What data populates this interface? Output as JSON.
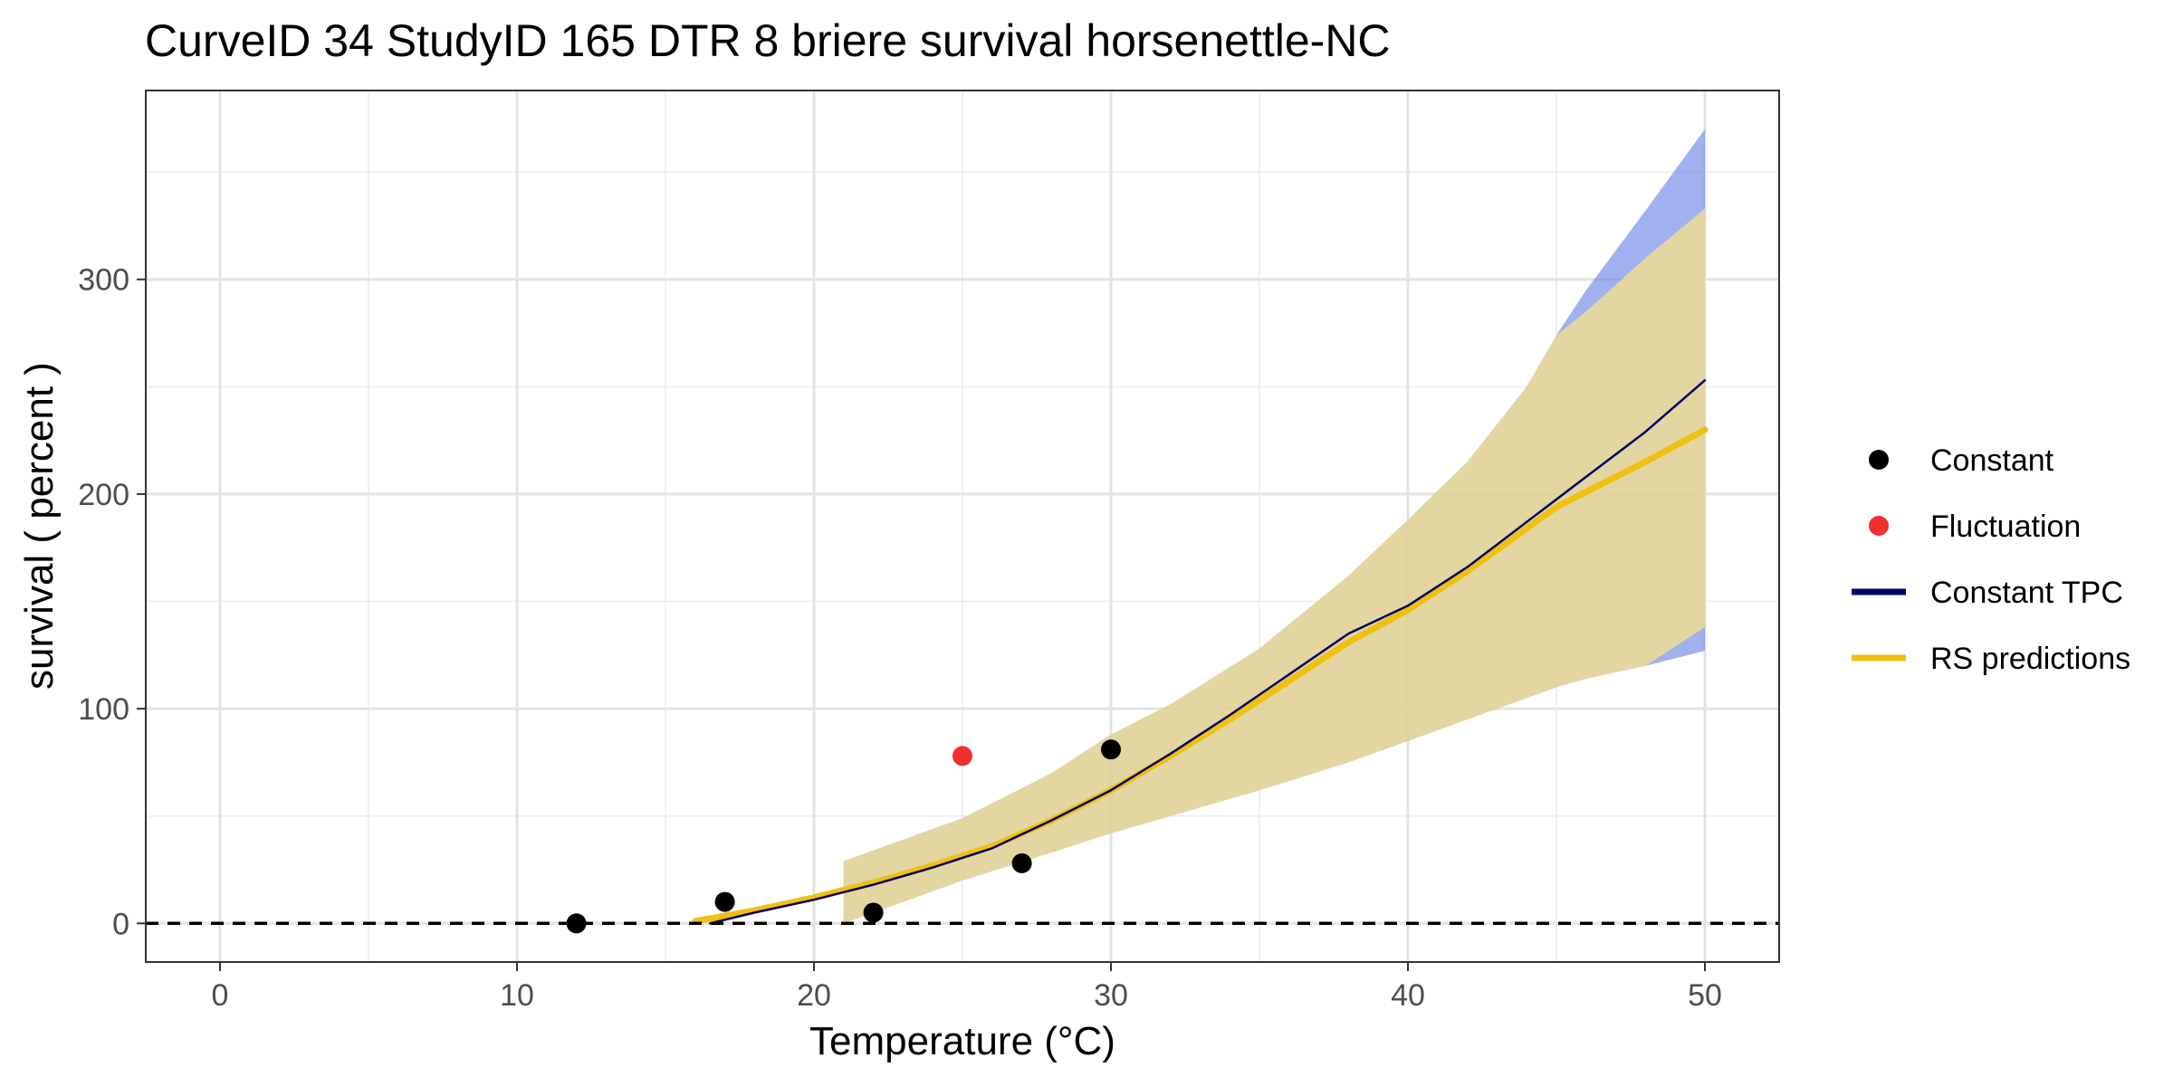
{
  "chart_data": {
    "type": "line",
    "title": "CurveID 34 StudyID 165 DTR 8 briere survival horsenettle-NC",
    "xlabel": "Temperature (°C)",
    "ylabel": "survival ( percent )",
    "xlim": [
      -2.5,
      52.5
    ],
    "ylim": [
      -18,
      388
    ],
    "x_ticks": [
      0,
      10,
      20,
      30,
      40,
      50
    ],
    "y_ticks": [
      0,
      100,
      200,
      300
    ],
    "grid": true,
    "reference_line": {
      "y": 0,
      "style": "dashed"
    },
    "legend": {
      "position": "right",
      "entries": [
        {
          "label": "Constant",
          "symbol": "point",
          "color": "#000000"
        },
        {
          "label": "Fluctuation",
          "symbol": "point",
          "color": "#f03030"
        },
        {
          "label": "Constant TPC",
          "symbol": "line",
          "color": "#000066"
        },
        {
          "label": "RS predictions",
          "symbol": "line",
          "color": "#f0c010"
        }
      ]
    },
    "points_constant": [
      {
        "x": 12,
        "y": 0
      },
      {
        "x": 17,
        "y": 10
      },
      {
        "x": 22,
        "y": 5
      },
      {
        "x": 27,
        "y": 28
      },
      {
        "x": 30,
        "y": 81
      }
    ],
    "points_fluctuation": [
      {
        "x": 25,
        "y": 78
      }
    ],
    "constant_tpc": {
      "color": "#000066",
      "x": [
        16.5,
        18,
        20,
        22,
        24,
        26,
        28,
        30,
        32,
        34,
        36,
        38,
        40,
        42,
        44,
        46,
        48,
        50
      ],
      "y": [
        0,
        5,
        11,
        18,
        26,
        35,
        48,
        62,
        79,
        97,
        116,
        135,
        148,
        166,
        187,
        208,
        229,
        253
      ],
      "ci_color": "#6f87e6",
      "ci_x": [
        21,
        25,
        28,
        30,
        32,
        35,
        38,
        40,
        42,
        44,
        45,
        46,
        48,
        50
      ],
      "ci_lower": [
        0,
        20,
        33,
        42,
        50,
        62,
        75,
        85,
        95,
        105,
        110,
        114,
        120,
        127
      ],
      "ci_upper": [
        29,
        49,
        70,
        88,
        102,
        128,
        162,
        188,
        215,
        250,
        274,
        295,
        332,
        370
      ]
    },
    "rs_predictions": {
      "color": "#f0c010",
      "x": [
        16,
        18,
        20,
        22,
        24,
        26,
        28,
        30,
        32,
        34,
        36,
        38,
        40,
        42,
        44,
        45,
        46,
        48,
        50
      ],
      "y": [
        1,
        6,
        12,
        19,
        27,
        36,
        48,
        62,
        78,
        95,
        113,
        131,
        146,
        164,
        184,
        194,
        201,
        215,
        230
      ],
      "ci_color": "#ffe680",
      "ci_x": [
        21,
        25,
        28,
        30,
        32,
        35,
        38,
        40,
        42,
        44,
        45,
        46,
        48,
        50
      ],
      "ci_lower": [
        0,
        20,
        33,
        42,
        50,
        62,
        75,
        85,
        95,
        105,
        110,
        114,
        120,
        138
      ],
      "ci_upper": [
        29,
        49,
        70,
        88,
        102,
        128,
        162,
        188,
        215,
        250,
        274,
        285,
        310,
        333
      ]
    }
  }
}
